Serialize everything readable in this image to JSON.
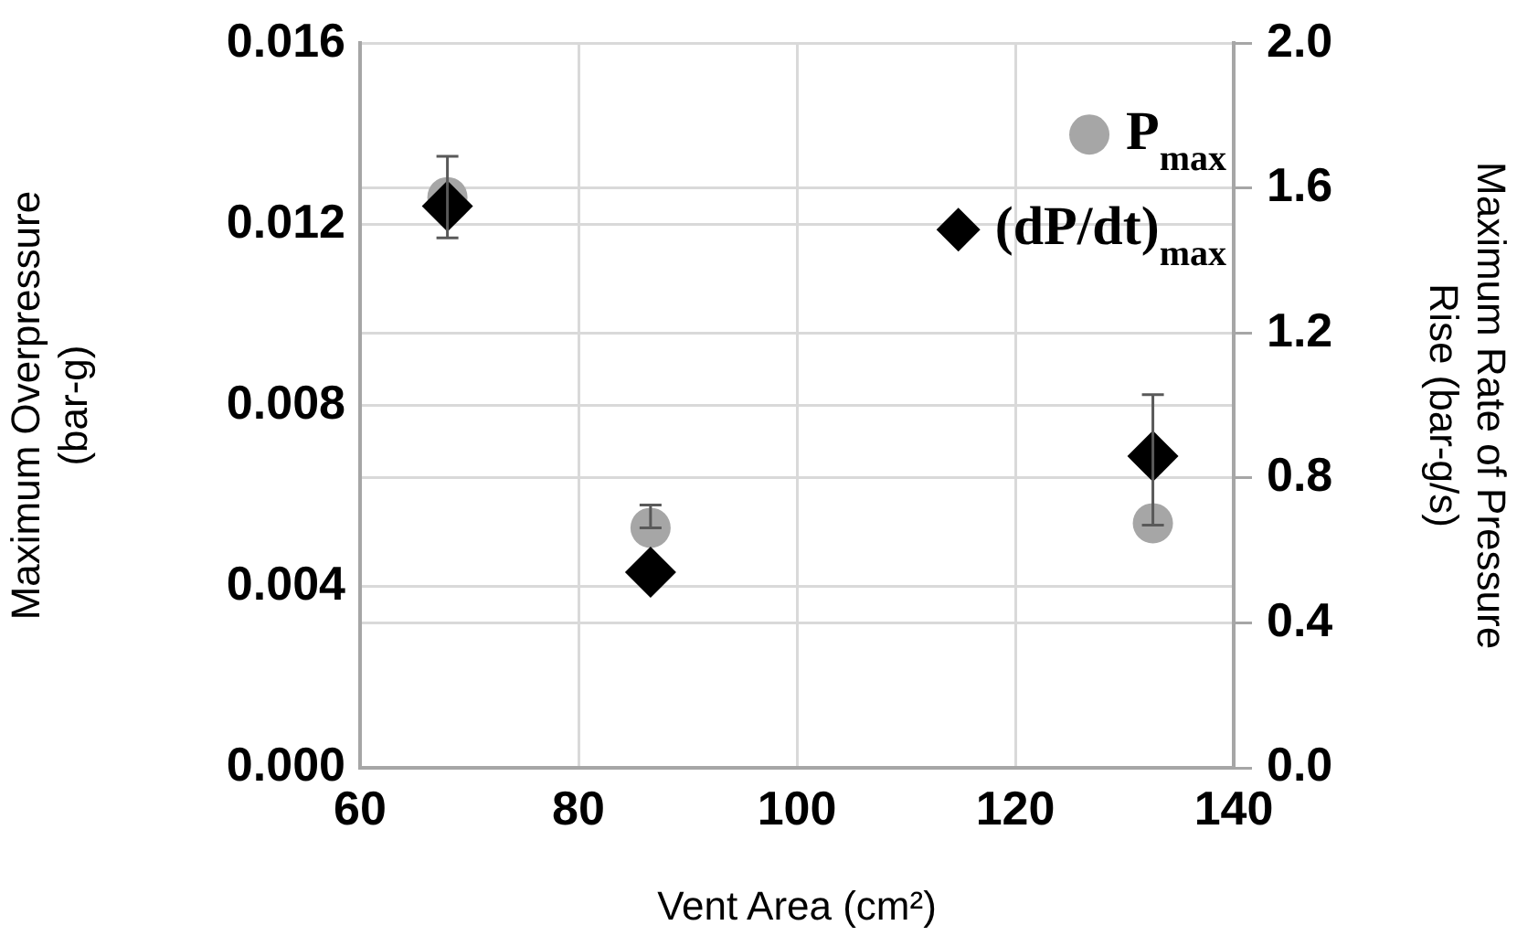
{
  "chart_data": {
    "type": "scatter",
    "xlabel": "Vent Area (cm²)",
    "ylabel": "Maximum Overpressure (bar-g)",
    "y2label": "Maximum Rate of Pressure Rise (bar-g/s)",
    "xlim": [
      60,
      140
    ],
    "xticks": [
      60,
      80,
      100,
      120,
      140
    ],
    "ylim": [
      0,
      0.016
    ],
    "yticks": [
      {
        "value": 0,
        "label": "0.000"
      },
      {
        "value": 0.004,
        "label": "0.004"
      },
      {
        "value": 0.008,
        "label": "0.008"
      },
      {
        "value": 0.012,
        "label": "0.012"
      },
      {
        "value": 0.016,
        "label": "0.016"
      }
    ],
    "y2lim": [
      0,
      2
    ],
    "y2ticks": [
      {
        "value": 0,
        "label": "0.0"
      },
      {
        "value": 0.4,
        "label": "0.4"
      },
      {
        "value": 0.8,
        "label": "0.8"
      },
      {
        "value": 1.2,
        "label": "1.2"
      },
      {
        "value": 1.6,
        "label": "1.6"
      },
      {
        "value": 2,
        "label": "2.0"
      }
    ],
    "grid": true,
    "legend": "top right",
    "series": [
      {
        "name": "P$_{max}$",
        "color": "#a6a6a6",
        "marker": "circle",
        "x": [
          68,
          86.6,
          132.6
        ],
        "values": [
          0.0126,
          0.0053,
          0.0054
        ],
        "errors": [
          [
            0.0117,
            0.0135
          ],
          [
            0.0053,
            0.0058
          ],
          null
        ]
      },
      {
        "name": "(dP/dt)$_{max}$",
        "color": "#000000",
        "marker": "diamond",
        "axis": "y2",
        "x": [
          68,
          86.6,
          132.6
        ],
        "values": [
          1.55,
          0.54,
          0.86
        ],
        "errors": [
          null,
          null,
          [
            0.67,
            1.03
          ]
        ]
      }
    ]
  }
}
